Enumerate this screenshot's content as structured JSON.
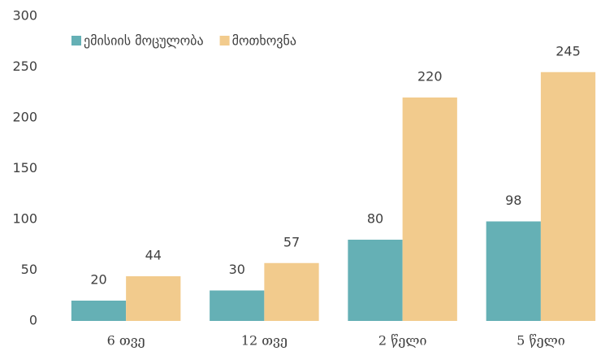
{
  "chart_data": {
    "type": "bar",
    "categories": [
      "6 თვე",
      "12 თვე",
      "2 წელი",
      "5 წელი"
    ],
    "series": [
      {
        "name": "ემისიის მოცულობა",
        "color": "#65b0b5",
        "values": [
          20,
          30,
          80,
          98
        ]
      },
      {
        "name": "მოთხოვნა",
        "color": "#f2cb8d",
        "values": [
          44,
          57,
          220,
          245
        ]
      }
    ],
    "ylim": [
      0,
      300
    ],
    "yticks": [
      0,
      50,
      100,
      150,
      200,
      250,
      300
    ],
    "grid": false,
    "legend": "top-left"
  }
}
